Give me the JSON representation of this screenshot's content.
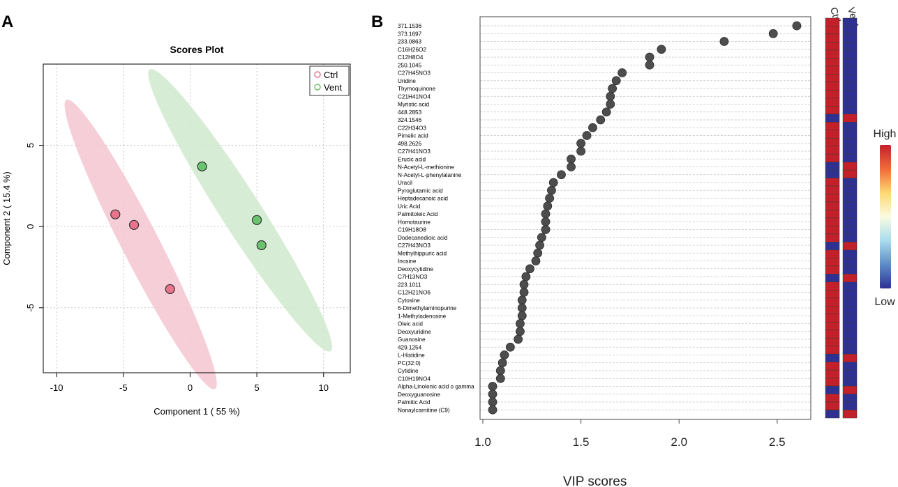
{
  "panels": {
    "a": "A",
    "b": "B"
  },
  "chart_data": [
    {
      "type": "scatter",
      "title": "Scores Plot",
      "xlabel": "Component 1 ( 55 %)",
      "ylabel": "Component 2 ( 15.4 %)",
      "xlim": [
        -11,
        12
      ],
      "ylim": [
        -9,
        10
      ],
      "xticks": [
        -10,
        -5,
        0,
        5,
        10
      ],
      "yticks": [
        -5,
        0,
        5
      ],
      "grid": true,
      "legend_position": "top-right",
      "series": [
        {
          "name": "Ctrl",
          "color": "#e8738d",
          "fill": "#f4c6d1",
          "points": [
            {
              "x": -5.6,
              "y": 0.75
            },
            {
              "x": -4.2,
              "y": 0.1
            },
            {
              "x": -1.5,
              "y": -3.85
            }
          ],
          "ellipse": {
            "cx": -3.7,
            "cy": -1.1,
            "rx": 10.5,
            "ry": 1.4,
            "angle_deg": -58
          }
        },
        {
          "name": "Vent",
          "color": "#6ac46e",
          "fill": "#cfe9cd",
          "points": [
            {
              "x": 0.9,
              "y": 3.7
            },
            {
              "x": 5.0,
              "y": 0.4
            },
            {
              "x": 5.35,
              "y": -1.15
            }
          ],
          "ellipse": {
            "cx": 3.75,
            "cy": 1.0,
            "rx": 11.0,
            "ry": 1.5,
            "angle_deg": -52
          }
        }
      ]
    },
    {
      "type": "scatter",
      "subtype": "vip-dotplot",
      "xlabel": "VIP scores",
      "xlim": [
        1.0,
        2.65
      ],
      "xticks": [
        1.0,
        1.5,
        2.0,
        2.5
      ],
      "xtick_labels": [
        "1.0",
        "1.5",
        "2.0",
        "2.5"
      ],
      "groups": [
        "Ctrl",
        "Vent"
      ],
      "colorbar": {
        "high_label": "High",
        "low_label": "Low",
        "colors": [
          "#c4202a",
          "#f06b3a",
          "#fbd873",
          "#fbfbe0",
          "#a9dcee",
          "#5c8cc6",
          "#2e3192"
        ]
      },
      "high_color": "#c4202a",
      "low_color": "#2e3192",
      "features": [
        {
          "name": "371.1536",
          "vip": 2.6,
          "ctrl": "high",
          "vent": "low"
        },
        {
          "name": "373.1697",
          "vip": 2.48,
          "ctrl": "high",
          "vent": "low"
        },
        {
          "name": "233.0863",
          "vip": 2.23,
          "ctrl": "high",
          "vent": "low"
        },
        {
          "name": "C16H26O2",
          "vip": 1.91,
          "ctrl": "high",
          "vent": "low"
        },
        {
          "name": "C12H8O4",
          "vip": 1.85,
          "ctrl": "high",
          "vent": "low"
        },
        {
          "name": "250.1045",
          "vip": 1.85,
          "ctrl": "high",
          "vent": "low"
        },
        {
          "name": "C27H45NO3",
          "vip": 1.71,
          "ctrl": "high",
          "vent": "low"
        },
        {
          "name": "Uridine",
          "vip": 1.68,
          "ctrl": "high",
          "vent": "low"
        },
        {
          "name": "Thymoquinone",
          "vip": 1.66,
          "ctrl": "high",
          "vent": "low"
        },
        {
          "name": "C21H41NO4",
          "vip": 1.65,
          "ctrl": "high",
          "vent": "low"
        },
        {
          "name": "Myristic acid",
          "vip": 1.65,
          "ctrl": "high",
          "vent": "low"
        },
        {
          "name": "448.2853",
          "vip": 1.63,
          "ctrl": "high",
          "vent": "low"
        },
        {
          "name": "324.1546",
          "vip": 1.6,
          "ctrl": "low",
          "vent": "high"
        },
        {
          "name": "C22H34O3",
          "vip": 1.56,
          "ctrl": "high",
          "vent": "low"
        },
        {
          "name": "Pimelic acid",
          "vip": 1.53,
          "ctrl": "high",
          "vent": "low"
        },
        {
          "name": "498.2626",
          "vip": 1.5,
          "ctrl": "high",
          "vent": "low"
        },
        {
          "name": "C27H41NO3",
          "vip": 1.5,
          "ctrl": "high",
          "vent": "low"
        },
        {
          "name": "Erucic acid",
          "vip": 1.45,
          "ctrl": "high",
          "vent": "low"
        },
        {
          "name": "N-Acetyl-L-methionine",
          "vip": 1.45,
          "ctrl": "low",
          "vent": "high"
        },
        {
          "name": "N-Acetyl-L-phenylalanine",
          "vip": 1.4,
          "ctrl": "low",
          "vent": "high"
        },
        {
          "name": "Uracil",
          "vip": 1.36,
          "ctrl": "high",
          "vent": "low"
        },
        {
          "name": "Pyroglutamic acid",
          "vip": 1.35,
          "ctrl": "high",
          "vent": "low"
        },
        {
          "name": "Heptadecanoic acid",
          "vip": 1.34,
          "ctrl": "high",
          "vent": "low"
        },
        {
          "name": "Uric Acid",
          "vip": 1.33,
          "ctrl": "high",
          "vent": "low"
        },
        {
          "name": "Palmitoleic Acid",
          "vip": 1.32,
          "ctrl": "high",
          "vent": "low"
        },
        {
          "name": "Homotaurine",
          "vip": 1.32,
          "ctrl": "high",
          "vent": "low"
        },
        {
          "name": "C19H18O8",
          "vip": 1.32,
          "ctrl": "high",
          "vent": "low"
        },
        {
          "name": "Dodecanedioic acid",
          "vip": 1.3,
          "ctrl": "high",
          "vent": "low"
        },
        {
          "name": "C27H43NO3",
          "vip": 1.29,
          "ctrl": "low",
          "vent": "high"
        },
        {
          "name": "Methylhippuric acid",
          "vip": 1.28,
          "ctrl": "high",
          "vent": "low"
        },
        {
          "name": "Inosine",
          "vip": 1.27,
          "ctrl": "high",
          "vent": "low"
        },
        {
          "name": "Deoxycytidine",
          "vip": 1.24,
          "ctrl": "high",
          "vent": "low"
        },
        {
          "name": "C7H13NO3",
          "vip": 1.22,
          "ctrl": "low",
          "vent": "high"
        },
        {
          "name": "223.1011",
          "vip": 1.21,
          "ctrl": "high",
          "vent": "low"
        },
        {
          "name": "C12H21NO6",
          "vip": 1.21,
          "ctrl": "high",
          "vent": "low"
        },
        {
          "name": "Cytosine",
          "vip": 1.2,
          "ctrl": "high",
          "vent": "low"
        },
        {
          "name": "6-Dimethylaminopurine",
          "vip": 1.2,
          "ctrl": "high",
          "vent": "low"
        },
        {
          "name": "1-Methyladenosine",
          "vip": 1.2,
          "ctrl": "high",
          "vent": "low"
        },
        {
          "name": "Oleic acid",
          "vip": 1.19,
          "ctrl": "high",
          "vent": "low"
        },
        {
          "name": "Deoxyuridine",
          "vip": 1.19,
          "ctrl": "high",
          "vent": "low"
        },
        {
          "name": "Guanosine",
          "vip": 1.18,
          "ctrl": "high",
          "vent": "low"
        },
        {
          "name": "429.1254",
          "vip": 1.14,
          "ctrl": "high",
          "vent": "low"
        },
        {
          "name": "L-Histidine",
          "vip": 1.11,
          "ctrl": "low",
          "vent": "high"
        },
        {
          "name": "PC(32:0)",
          "vip": 1.1,
          "ctrl": "high",
          "vent": "low"
        },
        {
          "name": "Cytidine",
          "vip": 1.09,
          "ctrl": "high",
          "vent": "low"
        },
        {
          "name": "C10H19NO4",
          "vip": 1.09,
          "ctrl": "high",
          "vent": "low"
        },
        {
          "name": "Alpha-Linolenic acid o gamma",
          "vip": 1.05,
          "ctrl": "low",
          "vent": "high"
        },
        {
          "name": "Deoxyguanosine",
          "vip": 1.05,
          "ctrl": "high",
          "vent": "low"
        },
        {
          "name": "Palmitic Acid",
          "vip": 1.05,
          "ctrl": "high",
          "vent": "low"
        },
        {
          "name": "Nonaylcarnitine (C9)",
          "vip": 1.05,
          "ctrl": "low",
          "vent": "high"
        }
      ]
    }
  ]
}
